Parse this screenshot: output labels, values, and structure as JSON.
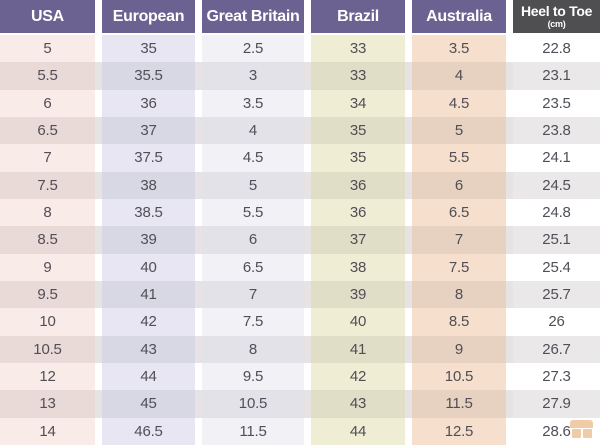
{
  "chart_data": {
    "type": "table",
    "columns": [
      {
        "key": "usa",
        "label": "USA"
      },
      {
        "key": "european",
        "label": "European"
      },
      {
        "key": "great_britain",
        "label": "Great Britain"
      },
      {
        "key": "brazil",
        "label": "Brazil"
      },
      {
        "key": "australia",
        "label": "Australia"
      },
      {
        "key": "heel_to_toe",
        "label": "Heel to Toe",
        "sublabel": "(cm)"
      }
    ],
    "rows": [
      [
        "5",
        "35",
        "2.5",
        "33",
        "3.5",
        "22.8"
      ],
      [
        "5.5",
        "35.5",
        "3",
        "33",
        "4",
        "23.1"
      ],
      [
        "6",
        "36",
        "3.5",
        "34",
        "4.5",
        "23.5"
      ],
      [
        "6.5",
        "37",
        "4",
        "35",
        "5",
        "23.8"
      ],
      [
        "7",
        "37.5",
        "4.5",
        "35",
        "5.5",
        "24.1"
      ],
      [
        "7.5",
        "38",
        "5",
        "36",
        "6",
        "24.5"
      ],
      [
        "8",
        "38.5",
        "5.5",
        "36",
        "6.5",
        "24.8"
      ],
      [
        "8.5",
        "39",
        "6",
        "37",
        "7",
        "25.1"
      ],
      [
        "9",
        "40",
        "6.5",
        "38",
        "7.5",
        "25.4"
      ],
      [
        "9.5",
        "41",
        "7",
        "39",
        "8",
        "25.7"
      ],
      [
        "10",
        "42",
        "7.5",
        "40",
        "8.5",
        "26"
      ],
      [
        "10.5",
        "43",
        "8",
        "41",
        "9",
        "26.7"
      ],
      [
        "12",
        "44",
        "9.5",
        "42",
        "10.5",
        "27.3"
      ],
      [
        "13",
        "45",
        "10.5",
        "43",
        "11.5",
        "27.9"
      ],
      [
        "14",
        "46.5",
        "11.5",
        "44",
        "12.5",
        "28.6"
      ]
    ]
  },
  "icons": {
    "watermark": "storefront-logo-icon"
  },
  "colors": {
    "header_purple": "#6b6291",
    "header_dark": "#4f4e50",
    "header_text": "#ffffff",
    "cell_text": "#514e57",
    "row_even_base": "#e7e3e4",
    "col_usa": "#f9ebe7",
    "col_usa_even": "#e9dad7",
    "col_european": "#e7e6f2",
    "col_european_even": "#d8d7e4",
    "col_great_britain": "#f2f1f6",
    "col_great_britain_even": "#e3e2e8",
    "col_brazil": "#efedd4",
    "col_brazil_even": "#e0dec7",
    "col_australia": "#f6dfcd",
    "col_australia_even": "#e7d1c0",
    "col_heel": "#ffffff",
    "col_heel_even": "#eae8e9",
    "watermark_orange": "#e08f3c"
  }
}
